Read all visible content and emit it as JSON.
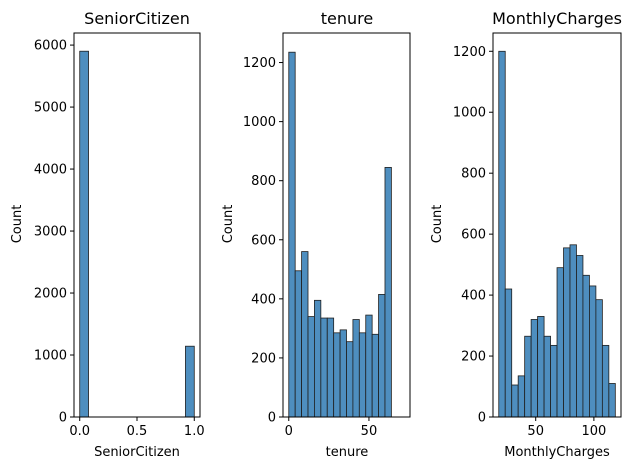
{
  "chart_data": [
    {
      "type": "bar",
      "title": "SeniorCitizen",
      "xlabel": "SeniorCitizen",
      "ylabel": "Count",
      "bar_color": "#4e8ebf",
      "edge_color": "#1f1f1f",
      "xlim": [
        -0.05,
        1.05
      ],
      "ylim": [
        0,
        6195
      ],
      "xticks": [
        0.0,
        0.5,
        1.0
      ],
      "xtick_labels": [
        "0.0",
        "0.5",
        "1.0"
      ],
      "yticks": [
        0,
        1000,
        2000,
        3000,
        4000,
        5000,
        6000
      ],
      "ytick_labels": [
        "0",
        "1000",
        "2000",
        "3000",
        "4000",
        "5000",
        "6000"
      ],
      "bins": [
        {
          "x0": 0.0,
          "x1": 0.0769,
          "value": 5901
        },
        {
          "x0": 0.9231,
          "x1": 1.0,
          "value": 1142
        }
      ]
    },
    {
      "type": "bar",
      "title": "tenure",
      "xlabel": "tenure",
      "ylabel": "Count",
      "bar_color": "#4e8ebf",
      "edge_color": "#1f1f1f",
      "xlim": [
        -3.6,
        75.6
      ],
      "ylim": [
        0,
        1300
      ],
      "xticks": [
        0,
        50
      ],
      "xtick_labels": [
        "0",
        "50"
      ],
      "yticks": [
        0,
        200,
        400,
        600,
        800,
        1000,
        1200
      ],
      "ytick_labels": [
        "0",
        "200",
        "400",
        "600",
        "800",
        "1000",
        "1200"
      ],
      "bin_edges": [
        0,
        4,
        8,
        12,
        16,
        20,
        24,
        28,
        32,
        36,
        40,
        44,
        48,
        52,
        56,
        60,
        64,
        68,
        72
      ],
      "values": [
        1235,
        495,
        560,
        340,
        395,
        335,
        335,
        285,
        295,
        255,
        330,
        285,
        345,
        280,
        415,
        845,
        0,
        0
      ]
    },
    {
      "type": "bar",
      "title": "MonthlyCharges",
      "xlabel": "MonthlyCharges",
      "ylabel": "Count",
      "bar_color": "#4e8ebf",
      "edge_color": "#1f1f1f",
      "xlim": [
        13.3,
        123.3
      ],
      "ylim": [
        0,
        1260
      ],
      "xticks": [
        50,
        100
      ],
      "xtick_labels": [
        "50",
        "100"
      ],
      "yticks": [
        0,
        200,
        400,
        600,
        800,
        1000,
        1200
      ],
      "ytick_labels": [
        "0",
        "200",
        "400",
        "600",
        "800",
        "1000",
        "1200"
      ],
      "bin_edges": [
        18.25,
        23.81,
        29.38,
        34.94,
        40.51,
        46.07,
        51.64,
        57.2,
        62.77,
        68.33,
        73.9,
        79.46,
        85.03,
        90.59,
        96.16,
        101.72,
        107.29,
        112.85,
        118.42
      ],
      "values": [
        1200,
        420,
        105,
        135,
        265,
        320,
        330,
        265,
        235,
        490,
        555,
        565,
        530,
        465,
        430,
        385,
        235,
        110
      ]
    }
  ]
}
